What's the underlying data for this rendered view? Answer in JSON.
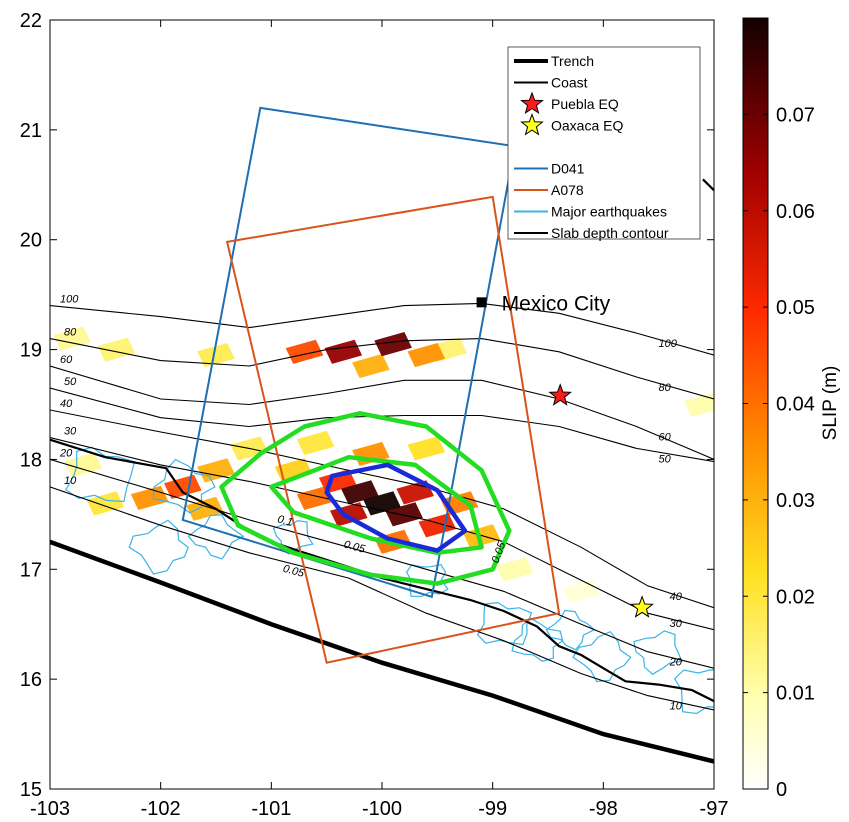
{
  "chart_data": {
    "type": "heatmap",
    "title": "",
    "xlabel": "",
    "ylabel": "",
    "xlim": [
      -103,
      -97
    ],
    "ylim": [
      15,
      22
    ],
    "x_ticks": [
      "-103",
      "-102",
      "-101",
      "-100",
      "-99",
      "-98",
      "-97"
    ],
    "y_ticks": [
      "15",
      "16",
      "17",
      "18",
      "19",
      "20",
      "21",
      "22"
    ],
    "colorbar": {
      "label": "SLIP (m)",
      "range": [
        0,
        0.08
      ],
      "ticks": [
        "0",
        "0.01",
        "0.02",
        "0.03",
        "0.04",
        "0.05",
        "0.06",
        "0.07"
      ]
    },
    "legend": {
      "placement": "top-right",
      "entries": [
        {
          "label": "Trench",
          "style": "thick-line",
          "color": "#000000"
        },
        {
          "label": "Coast",
          "style": "line",
          "color": "#000000"
        },
        {
          "label": "Puebla EQ",
          "style": "star",
          "color": "#ff1a1a"
        },
        {
          "label": "Oaxaca EQ",
          "style": "star",
          "color": "#ffff1a"
        },
        {
          "label": "",
          "style": "none",
          "color": ""
        },
        {
          "label": "D041",
          "style": "line",
          "color": "#1f6fb2"
        },
        {
          "label": "A078",
          "style": "line",
          "color": "#d9541a"
        },
        {
          "label": "Major earthquakes",
          "style": "line",
          "color": "#3ab4e6"
        },
        {
          "label": "Slab depth contour",
          "style": "line",
          "color": "#000000"
        }
      ]
    },
    "city": {
      "label": "Mexico City",
      "lon": -99.1,
      "lat": 19.43
    },
    "events": [
      {
        "name": "Puebla EQ",
        "lon": -98.39,
        "lat": 18.58,
        "color": "#ff1a1a"
      },
      {
        "name": "Oaxaca EQ",
        "lon": -97.65,
        "lat": 16.65,
        "color": "#ffff1a"
      }
    ],
    "trench": [
      [
        -103,
        17.25
      ],
      [
        -102,
        16.88
      ],
      [
        -101,
        16.5
      ],
      [
        -100,
        16.15
      ],
      [
        -99,
        15.85
      ],
      [
        -98,
        15.5
      ],
      [
        -97,
        15.25
      ]
    ],
    "coast": [
      [
        -103,
        18.18
      ],
      [
        -102.5,
        18.02
      ],
      [
        -101.95,
        17.92
      ],
      [
        -101.8,
        17.7
      ],
      [
        -101.5,
        17.55
      ],
      [
        -101.2,
        17.35
      ],
      [
        -101.0,
        17.25
      ],
      [
        -100.7,
        17.15
      ],
      [
        -100.3,
        17.02
      ],
      [
        -100.0,
        16.92
      ],
      [
        -99.6,
        16.82
      ],
      [
        -99.2,
        16.72
      ],
      [
        -98.9,
        16.62
      ],
      [
        -98.6,
        16.48
      ],
      [
        -98.4,
        16.3
      ],
      [
        -98.2,
        16.22
      ],
      [
        -98.0,
        16.1
      ],
      [
        -97.8,
        15.98
      ],
      [
        -97.5,
        15.95
      ],
      [
        -97.2,
        15.9
      ],
      [
        -97,
        15.8
      ]
    ],
    "coast_north": [
      [
        -97.1,
        20.55
      ],
      [
        -97.0,
        20.45
      ]
    ],
    "slab_contours": [
      {
        "label": "100",
        "points": [
          [
            -103,
            19.4
          ],
          [
            -102,
            19.3
          ],
          [
            -101.2,
            19.2
          ],
          [
            -100.5,
            19.3
          ],
          [
            -99.8,
            19.4
          ],
          [
            -99.1,
            19.42
          ],
          [
            -98.4,
            19.33
          ],
          [
            -97.7,
            19.15
          ],
          [
            -97,
            18.95
          ]
        ]
      },
      {
        "label": "80",
        "points": [
          [
            -103,
            19.1
          ],
          [
            -102,
            18.9
          ],
          [
            -101.2,
            18.85
          ],
          [
            -100.5,
            19.0
          ],
          [
            -99.8,
            19.08
          ],
          [
            -99.1,
            19.1
          ],
          [
            -98.4,
            18.98
          ],
          [
            -97.7,
            18.75
          ],
          [
            -97,
            18.55
          ]
        ]
      },
      {
        "label": "60",
        "points": [
          [
            -103,
            18.85
          ],
          [
            -102,
            18.55
          ],
          [
            -101.2,
            18.5
          ],
          [
            -100.5,
            18.6
          ],
          [
            -99.8,
            18.72
          ],
          [
            -99.1,
            18.72
          ],
          [
            -98.4,
            18.55
          ],
          [
            -97.7,
            18.3
          ],
          [
            -97,
            18.0
          ]
        ]
      },
      {
        "label": "50",
        "points": [
          [
            -103,
            18.65
          ],
          [
            -102,
            18.38
          ],
          [
            -101.2,
            18.3
          ],
          [
            -100.5,
            18.38
          ],
          [
            -99.8,
            18.4
          ],
          [
            -99.1,
            18.4
          ],
          [
            -98.4,
            18.3
          ],
          [
            -97.7,
            18.1
          ],
          [
            -97,
            17.98
          ]
        ]
      },
      {
        "label": "40",
        "points": [
          [
            -103,
            18.45
          ],
          [
            -102,
            18.25
          ],
          [
            -101.2,
            18.1
          ],
          [
            -100.3,
            17.9
          ],
          [
            -99.6,
            17.75
          ],
          [
            -98.9,
            17.55
          ],
          [
            -98.2,
            17.2
          ],
          [
            -97.6,
            16.85
          ],
          [
            -97,
            16.65
          ]
        ]
      },
      {
        "label": "30",
        "points": [
          [
            -103,
            18.2
          ],
          [
            -102,
            17.95
          ],
          [
            -101.2,
            17.8
          ],
          [
            -100.3,
            17.6
          ],
          [
            -99.6,
            17.45
          ],
          [
            -98.9,
            17.25
          ],
          [
            -98.2,
            16.9
          ],
          [
            -97.6,
            16.6
          ],
          [
            -97,
            16.45
          ]
        ]
      },
      {
        "label": "20",
        "points": [
          [
            -103,
            18.0
          ],
          [
            -102,
            17.7
          ],
          [
            -101.2,
            17.45
          ],
          [
            -100.3,
            17.2
          ],
          [
            -99.6,
            17.0
          ],
          [
            -98.9,
            16.8
          ],
          [
            -98.2,
            16.5
          ],
          [
            -97.6,
            16.25
          ],
          [
            -97,
            16.1
          ]
        ]
      },
      {
        "label": "10",
        "points": [
          [
            -103,
            17.75
          ],
          [
            -102,
            17.4
          ],
          [
            -101.2,
            17.15
          ],
          [
            -100.3,
            16.92
          ],
          [
            -99.6,
            16.6
          ],
          [
            -98.9,
            16.35
          ],
          [
            -98.2,
            16.05
          ],
          [
            -97.6,
            15.85
          ],
          [
            -97,
            15.72
          ]
        ]
      }
    ],
    "frames": [
      {
        "name": "D041",
        "color": "#1f6fb2",
        "points": [
          [
            -101.1,
            21.2
          ],
          [
            -98.8,
            20.85
          ],
          [
            -99.55,
            16.75
          ],
          [
            -101.8,
            17.45
          ]
        ]
      },
      {
        "name": "A078",
        "color": "#d9541a",
        "points": [
          [
            -101.4,
            19.98
          ],
          [
            -99.0,
            20.39
          ],
          [
            -98.4,
            16.6
          ],
          [
            -100.5,
            16.15
          ]
        ]
      }
    ],
    "slip_contours": [
      {
        "value": "0.05",
        "color": "#22dd22",
        "points": [
          [
            -100.7,
            18.3
          ],
          [
            -100.2,
            18.42
          ],
          [
            -99.6,
            18.3
          ],
          [
            -99.1,
            17.9
          ],
          [
            -98.85,
            17.35
          ],
          [
            -99.0,
            17.0
          ],
          [
            -99.5,
            16.87
          ],
          [
            -100.1,
            16.95
          ],
          [
            -100.8,
            17.15
          ],
          [
            -101.3,
            17.4
          ],
          [
            -101.45,
            17.75
          ],
          [
            -101.1,
            18.05
          ]
        ]
      },
      {
        "value": "0.05",
        "color": "#22dd22",
        "points": [
          [
            -101.0,
            17.75
          ],
          [
            -100.3,
            18.02
          ],
          [
            -99.7,
            17.95
          ],
          [
            -99.2,
            17.58
          ],
          [
            -99.1,
            17.2
          ],
          [
            -99.5,
            17.15
          ],
          [
            -100.1,
            17.28
          ],
          [
            -100.8,
            17.52
          ]
        ]
      },
      {
        "value": "0.1",
        "color": "#1a2ad9",
        "points": [
          [
            -100.45,
            17.85
          ],
          [
            -99.95,
            17.95
          ],
          [
            -99.5,
            17.72
          ],
          [
            -99.25,
            17.35
          ],
          [
            -99.5,
            17.17
          ],
          [
            -99.95,
            17.28
          ],
          [
            -100.35,
            17.5
          ],
          [
            -100.5,
            17.7
          ]
        ]
      }
    ],
    "slip_patches": [
      {
        "lon": -100.0,
        "lat": 17.6,
        "value": 0.08
      },
      {
        "lon": -100.2,
        "lat": 17.7,
        "value": 0.075
      },
      {
        "lon": -99.8,
        "lat": 17.5,
        "value": 0.072
      },
      {
        "lon": -100.3,
        "lat": 17.5,
        "value": 0.06
      },
      {
        "lon": -99.7,
        "lat": 17.7,
        "value": 0.058
      },
      {
        "lon": -100.4,
        "lat": 17.8,
        "value": 0.05
      },
      {
        "lon": -99.5,
        "lat": 17.4,
        "value": 0.052
      },
      {
        "lon": -100.6,
        "lat": 17.65,
        "value": 0.04
      },
      {
        "lon": -99.3,
        "lat": 17.6,
        "value": 0.038
      },
      {
        "lon": -100.1,
        "lat": 18.05,
        "value": 0.035
      },
      {
        "lon": -99.9,
        "lat": 17.25,
        "value": 0.04
      },
      {
        "lon": -100.8,
        "lat": 17.9,
        "value": 0.025
      },
      {
        "lon": -99.1,
        "lat": 17.3,
        "value": 0.028
      },
      {
        "lon": -100.6,
        "lat": 18.15,
        "value": 0.02
      },
      {
        "lon": -99.6,
        "lat": 18.1,
        "value": 0.022
      },
      {
        "lon": -101.8,
        "lat": 17.75,
        "value": 0.045
      },
      {
        "lon": -102.1,
        "lat": 17.65,
        "value": 0.035
      },
      {
        "lon": -101.5,
        "lat": 17.9,
        "value": 0.03
      },
      {
        "lon": -101.6,
        "lat": 17.55,
        "value": 0.03
      },
      {
        "lon": -102.5,
        "lat": 17.6,
        "value": 0.02
      },
      {
        "lon": -101.2,
        "lat": 18.1,
        "value": 0.018
      },
      {
        "lon": -102.7,
        "lat": 17.95,
        "value": 0.012
      },
      {
        "lon": -99.9,
        "lat": 19.05,
        "value": 0.07
      },
      {
        "lon": -100.35,
        "lat": 18.98,
        "value": 0.065
      },
      {
        "lon": -100.7,
        "lat": 18.98,
        "value": 0.045
      },
      {
        "lon": -99.6,
        "lat": 18.95,
        "value": 0.035
      },
      {
        "lon": -100.1,
        "lat": 18.85,
        "value": 0.03
      },
      {
        "lon": -101.5,
        "lat": 18.95,
        "value": 0.018
      },
      {
        "lon": -102.4,
        "lat": 19.0,
        "value": 0.015
      },
      {
        "lon": -99.4,
        "lat": 19.0,
        "value": 0.015
      },
      {
        "lon": -102.8,
        "lat": 19.1,
        "value": 0.012
      },
      {
        "lon": -97.1,
        "lat": 18.5,
        "value": 0.01
      },
      {
        "lon": -98.8,
        "lat": 17.0,
        "value": 0.01
      },
      {
        "lon": -98.2,
        "lat": 16.8,
        "value": 0.005
      }
    ],
    "major_earthquakes": [
      {
        "lon": -102.55,
        "lat": 17.85,
        "r": 0.35
      },
      {
        "lon": -101.8,
        "lat": 17.75,
        "r": 0.3
      },
      {
        "lon": -101.5,
        "lat": 17.3,
        "r": 0.25
      },
      {
        "lon": -102.0,
        "lat": 17.2,
        "r": 0.3
      },
      {
        "lon": -100.8,
        "lat": 17.3,
        "r": 0.2
      },
      {
        "lon": -99.6,
        "lat": 16.9,
        "r": 0.22
      },
      {
        "lon": -98.9,
        "lat": 16.5,
        "r": 0.28
      },
      {
        "lon": -98.6,
        "lat": 16.35,
        "r": 0.25
      },
      {
        "lon": -98.3,
        "lat": 16.45,
        "r": 0.22
      },
      {
        "lon": -98.0,
        "lat": 16.2,
        "r": 0.28
      },
      {
        "lon": -97.5,
        "lat": 16.25,
        "r": 0.25
      },
      {
        "lon": -97.1,
        "lat": 15.9,
        "r": 0.3
      }
    ]
  }
}
